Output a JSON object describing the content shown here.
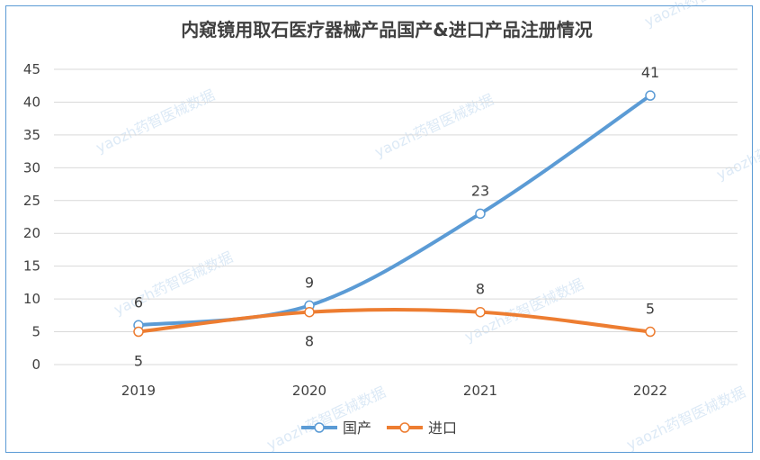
{
  "chart_data": {
    "type": "line",
    "title": "内窥镜用取石医疗器械产品国产&进口产品注册情况",
    "xlabel": "",
    "ylabel": "",
    "categories": [
      "2019",
      "2020",
      "2021",
      "2022"
    ],
    "ylim": [
      0,
      45
    ],
    "yticks": [
      0,
      5,
      10,
      15,
      20,
      25,
      30,
      35,
      40,
      45
    ],
    "grid": true,
    "legend_position": "bottom",
    "smooth": true,
    "series": [
      {
        "name": "国产",
        "values": [
          6,
          9,
          23,
          41
        ],
        "color": "#5b9bd5"
      },
      {
        "name": "进口",
        "values": [
          5,
          8,
          8,
          5
        ],
        "color": "#ed7d31"
      }
    ]
  },
  "watermark": "yaozh药智医械数据"
}
